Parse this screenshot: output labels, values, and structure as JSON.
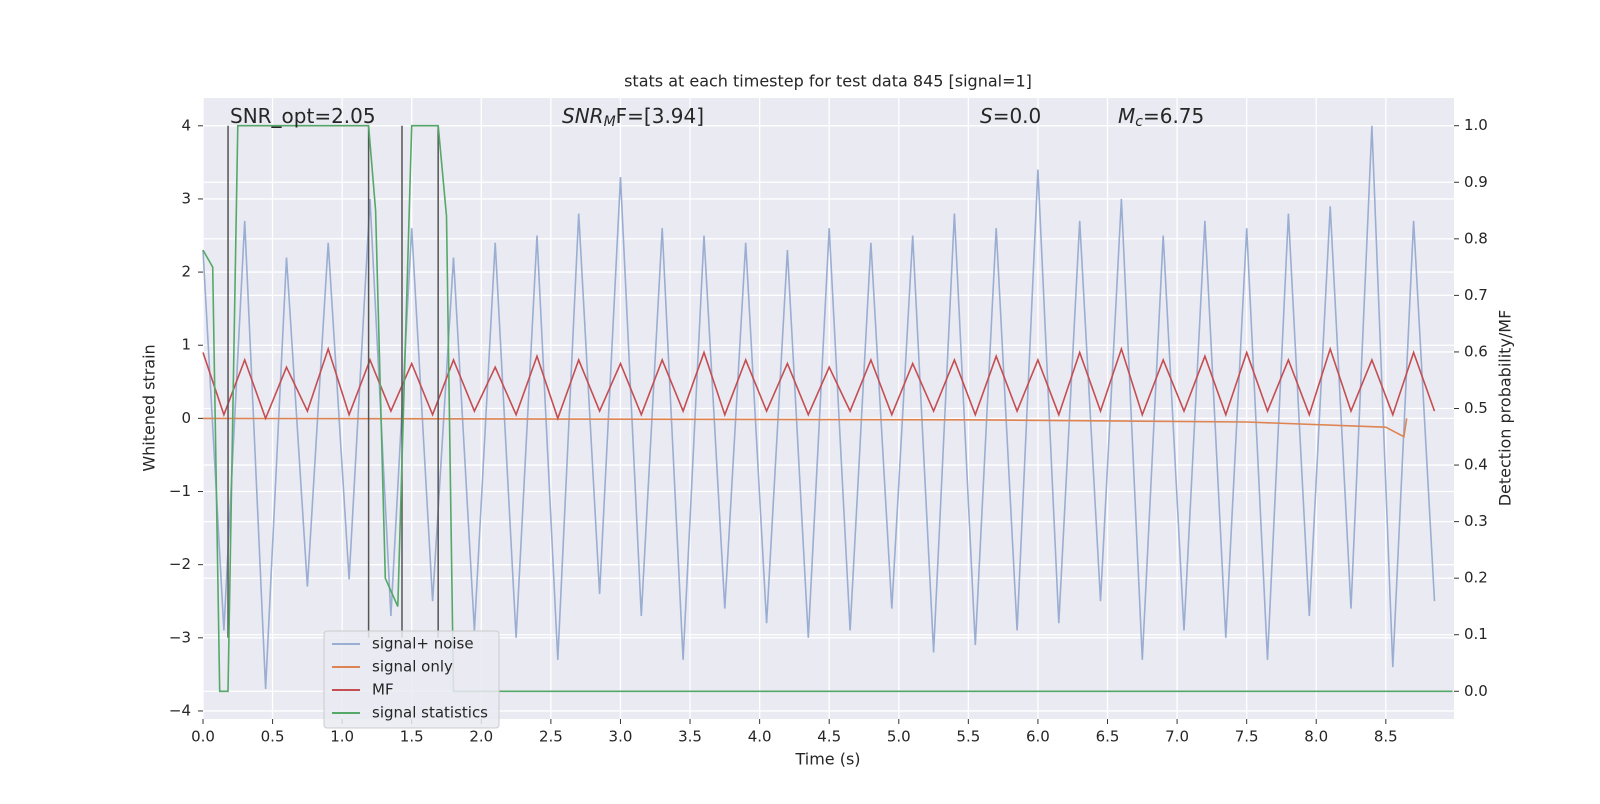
{
  "chart_data": {
    "type": "line",
    "title": "stats at each timestep for test data 845 [signal=1]",
    "xlabel": "Time (s)",
    "ylabel": "Whitened strain",
    "y2label": "Detection probability/MF",
    "annotations": [
      {
        "text": "SNR_opt=2.05"
      },
      {
        "text": "SNR",
        "sub": "M",
        "rest": "F=[3.94]"
      },
      {
        "text": "S",
        "rest": "=0.0"
      },
      {
        "text": "M",
        "sub": "c",
        "rest": "=6.75"
      }
    ],
    "xlim": [
      0,
      8.99
    ],
    "ylim": [
      -4.11,
      4.38
    ],
    "y2lim": [
      -0.049,
      1.049
    ],
    "xticks": [
      {
        "value": 0,
        "label": "0.0"
      },
      {
        "value": 0.5,
        "label": "0.5"
      },
      {
        "value": 1,
        "label": "1.0"
      },
      {
        "value": 1.5,
        "label": "1.5"
      },
      {
        "value": 2,
        "label": "2.0"
      },
      {
        "value": 2.5,
        "label": "2.5"
      },
      {
        "value": 3,
        "label": "3.0"
      },
      {
        "value": 3.5,
        "label": "3.5"
      },
      {
        "value": 4,
        "label": "4.0"
      },
      {
        "value": 4.5,
        "label": "4.5"
      },
      {
        "value": 5,
        "label": "5.0"
      },
      {
        "value": 5.5,
        "label": "5.5"
      },
      {
        "value": 6,
        "label": "6.0"
      },
      {
        "value": 6.5,
        "label": "6.5"
      },
      {
        "value": 7,
        "label": "7.0"
      },
      {
        "value": 7.5,
        "label": "7.5"
      },
      {
        "value": 8,
        "label": "8.0"
      },
      {
        "value": 8.5,
        "label": "8.5"
      }
    ],
    "yticks": [
      {
        "value": -4,
        "label": "−4"
      },
      {
        "value": -3,
        "label": "−3"
      },
      {
        "value": -2,
        "label": "−2"
      },
      {
        "value": -1,
        "label": "−1"
      },
      0,
      1,
      2,
      3,
      4
    ],
    "y2ticks": [
      {
        "value": 0,
        "label": "0.0"
      },
      {
        "value": 0.1,
        "label": "0.1"
      },
      {
        "value": 0.2,
        "label": "0.2"
      },
      {
        "value": 0.3,
        "label": "0.3"
      },
      {
        "value": 0.4,
        "label": "0.4"
      },
      {
        "value": 0.5,
        "label": "0.5"
      },
      {
        "value": 0.6,
        "label": "0.6"
      },
      {
        "value": 0.7,
        "label": "0.7"
      },
      {
        "value": 0.8,
        "label": "0.8"
      },
      {
        "value": 0.9,
        "label": "0.9"
      },
      {
        "value": 1,
        "label": "1.0"
      }
    ],
    "grid": true,
    "legend": "lower left",
    "vlines": {
      "color": "#555555",
      "x": [
        0.18,
        1.19,
        1.43,
        1.69
      ],
      "ymin": -3.0,
      "ymax": 4
    },
    "series": [
      {
        "name": "signal+ noise",
        "color": "#9aaed2",
        "x": [
          0,
          0.15,
          0.3,
          0.45,
          0.6,
          0.75,
          0.9,
          1.05,
          1.2,
          1.35,
          1.5,
          1.65,
          1.8,
          1.95,
          2.1,
          2.25,
          2.4,
          2.55,
          2.7,
          2.85,
          3,
          3.15,
          3.3,
          3.45,
          3.6,
          3.75,
          3.9,
          4.05,
          4.2,
          4.35,
          4.5,
          4.65,
          4.8,
          4.95,
          5.1,
          5.25,
          5.4,
          5.55,
          5.7,
          5.85,
          6,
          6.15,
          6.3,
          6.45,
          6.6,
          6.75,
          6.9,
          7.05,
          7.2,
          7.35,
          7.5,
          7.65,
          7.8,
          7.95,
          8.1,
          8.25,
          8.4,
          8.55,
          8.7,
          8.85
        ],
        "values": [
          2.3,
          -2.9,
          2.7,
          -3.7,
          2.2,
          -2.3,
          2.4,
          -2.2,
          3.0,
          -2.7,
          2.6,
          -2.5,
          2.2,
          -2.9,
          2.4,
          -3.0,
          2.5,
          -3.3,
          2.8,
          -2.4,
          3.3,
          -2.7,
          2.6,
          -3.3,
          2.5,
          -2.6,
          2.4,
          -2.8,
          2.3,
          -3.0,
          2.6,
          -2.9,
          2.4,
          -2.6,
          2.5,
          -3.2,
          2.8,
          -3.1,
          2.6,
          -2.9,
          3.4,
          -2.8,
          2.7,
          -2.5,
          3.0,
          -3.3,
          2.5,
          -2.9,
          2.7,
          -3.0,
          2.6,
          -3.3,
          2.8,
          -2.7,
          2.9,
          -2.6,
          4.0,
          -3.4,
          2.7,
          -2.5
        ]
      },
      {
        "name": "signal only",
        "color": "#dd8452",
        "x": [
          0,
          5.5,
          7.5,
          8.5,
          8.63,
          8.65
        ],
        "values": [
          0,
          -0.02,
          -0.05,
          -0.12,
          -0.25,
          0
        ]
      },
      {
        "name": "MF",
        "color": "#c44e52",
        "x": [
          0,
          0.15,
          0.3,
          0.45,
          0.6,
          0.75,
          0.9,
          1.05,
          1.2,
          1.35,
          1.5,
          1.65,
          1.8,
          1.95,
          2.1,
          2.25,
          2.4,
          2.55,
          2.7,
          2.85,
          3,
          3.15,
          3.3,
          3.45,
          3.6,
          3.75,
          3.9,
          4.05,
          4.2,
          4.35,
          4.5,
          4.65,
          4.8,
          4.95,
          5.1,
          5.25,
          5.4,
          5.55,
          5.7,
          5.85,
          6,
          6.15,
          6.3,
          6.45,
          6.6,
          6.75,
          6.9,
          7.05,
          7.2,
          7.35,
          7.5,
          7.65,
          7.8,
          7.95,
          8.1,
          8.25,
          8.4,
          8.55,
          8.7,
          8.85
        ],
        "values": [
          0.9,
          0.05,
          0.8,
          0.0,
          0.7,
          0.1,
          0.95,
          0.05,
          0.8,
          0.1,
          0.75,
          0.05,
          0.8,
          0.1,
          0.7,
          0.05,
          0.85,
          0.0,
          0.8,
          0.1,
          0.75,
          0.05,
          0.8,
          0.1,
          0.9,
          0.05,
          0.8,
          0.1,
          0.75,
          0.05,
          0.7,
          0.1,
          0.8,
          0.05,
          0.75,
          0.1,
          0.8,
          0.05,
          0.85,
          0.1,
          0.8,
          0.05,
          0.9,
          0.1,
          0.95,
          0.05,
          0.8,
          0.1,
          0.85,
          0.05,
          0.9,
          0.1,
          0.8,
          0.05,
          0.95,
          0.1,
          0.8,
          0.05,
          0.9,
          0.1
        ]
      },
      {
        "name": "signal statistics",
        "color": "#55a868",
        "axis": "y2",
        "x": [
          0,
          0.07,
          0.12,
          0.18,
          0.25,
          1.19,
          1.24,
          1.31,
          1.4,
          1.5,
          1.69,
          1.75,
          1.8,
          8.98
        ],
        "values": [
          0.78,
          0.75,
          0,
          0,
          1,
          1,
          0.85,
          0.2,
          0.15,
          1,
          1,
          0.84,
          0,
          0
        ]
      }
    ]
  }
}
